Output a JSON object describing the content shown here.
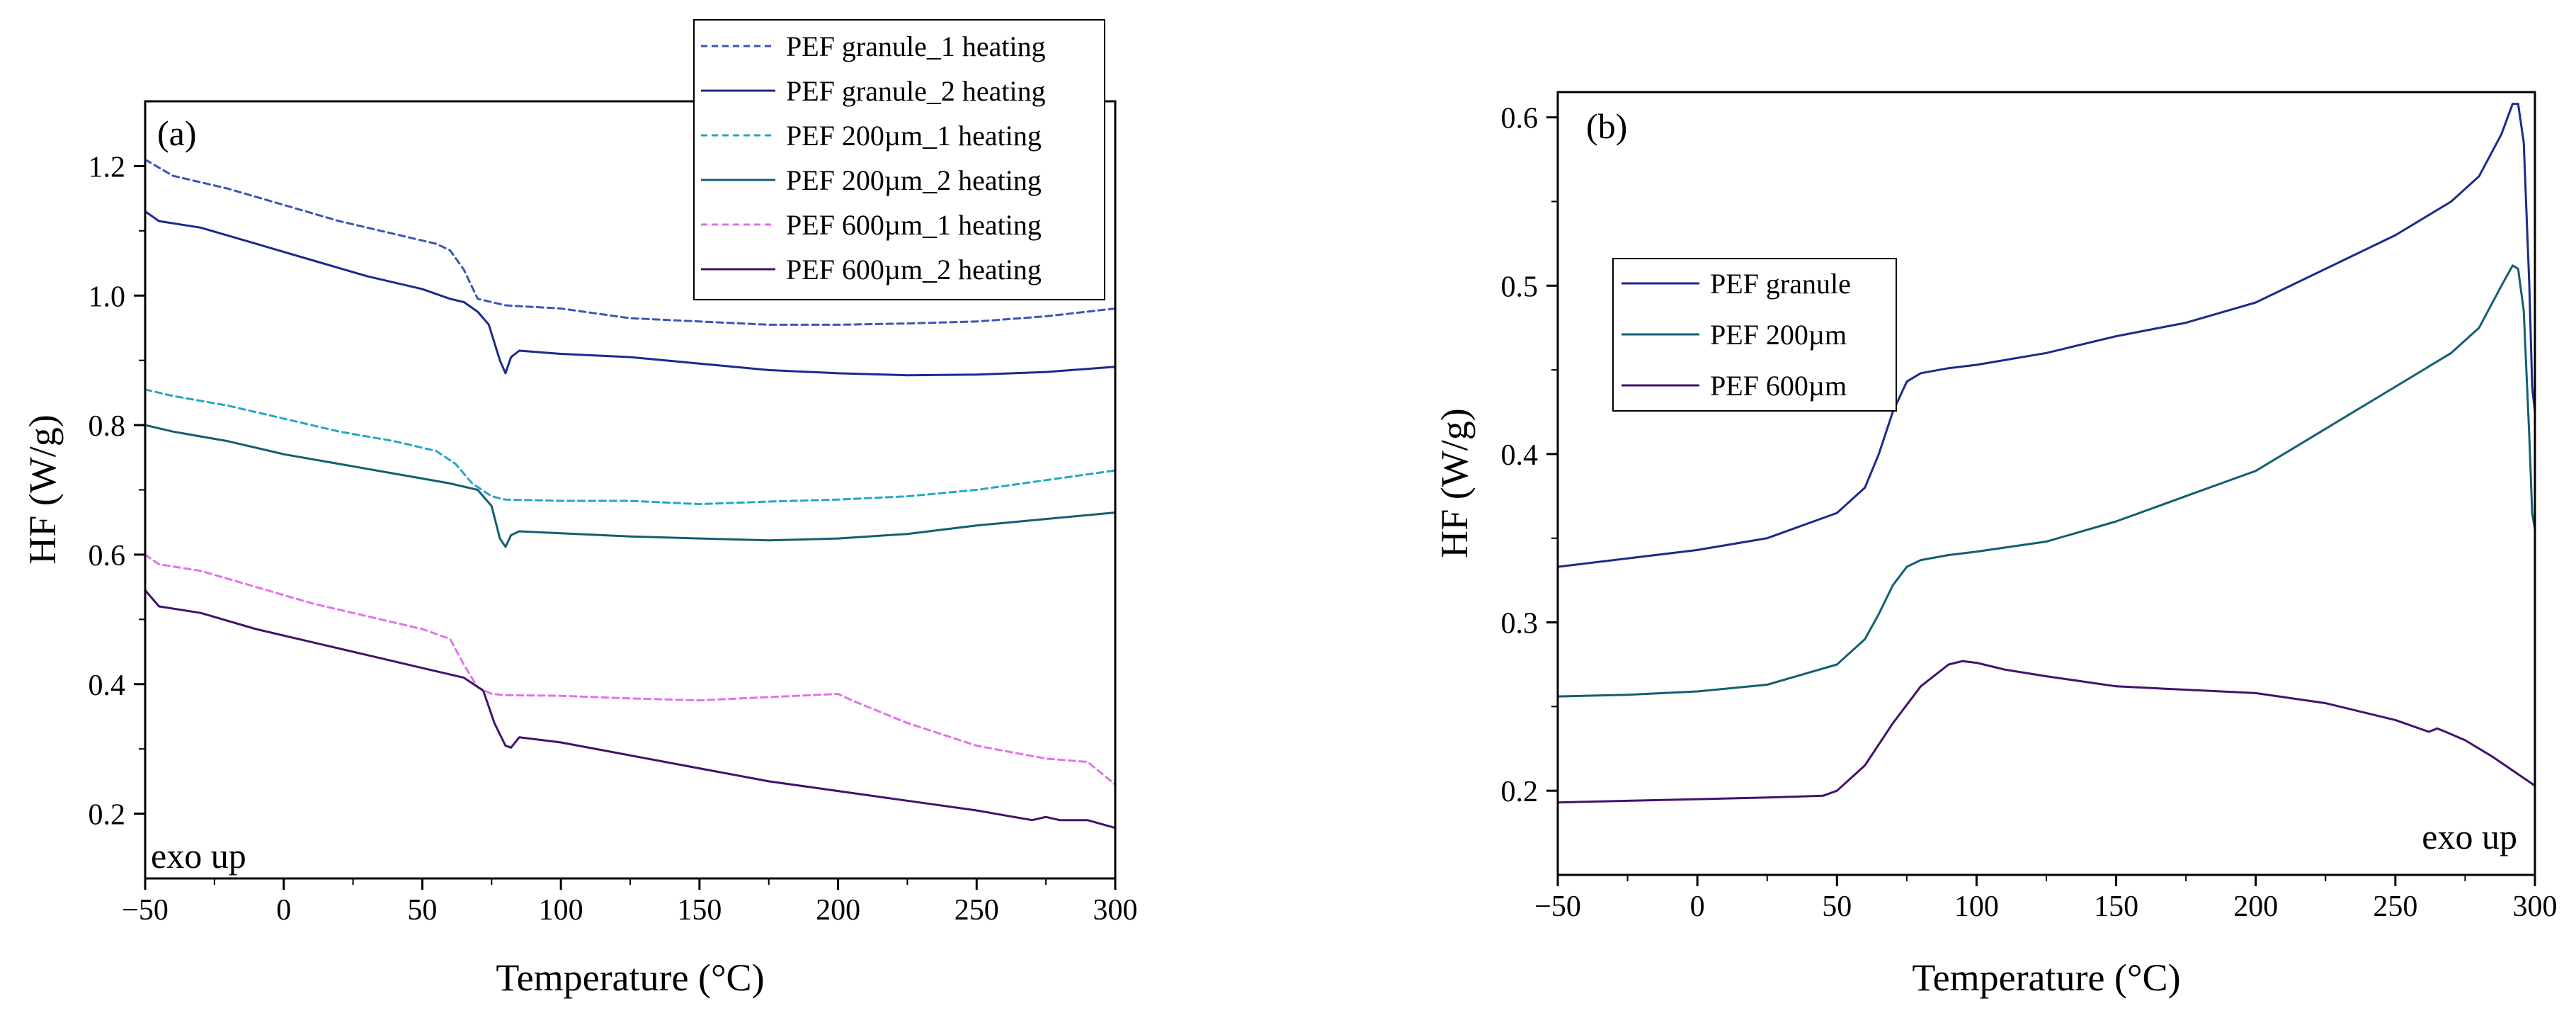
{
  "colors": {
    "granule_1": "#3a55b8",
    "granule_2": "#1c2a8c",
    "um200_1": "#27a6c5",
    "um200_2": "#135f72",
    "um600_1": "#e272ec",
    "um600_2": "#43126b",
    "axis": "#000000"
  },
  "chart_data": [
    {
      "type": "line",
      "panel": "(a)",
      "xlabel": "Temperature (°C)",
      "ylabel": "HF (W/g)",
      "xlim": [
        -50,
        300
      ],
      "ylim": [
        0.1,
        1.3
      ],
      "xticks": [
        "−50",
        "0",
        "50",
        "100",
        "150",
        "200",
        "250",
        "300"
      ],
      "xtick_values": [
        -50,
        0,
        50,
        100,
        150,
        200,
        250,
        300
      ],
      "yticks": [
        "0.2",
        "0.4",
        "0.6",
        "0.8",
        "1.0",
        "1.2"
      ],
      "ytick_values": [
        0.2,
        0.4,
        0.6,
        0.8,
        1.0,
        1.2
      ],
      "annotation": "exo up",
      "legend_position": "top-right",
      "series": [
        {
          "name": "PEF granule_1 heating",
          "color_key": "granule_1",
          "dash": true,
          "x": [
            -50,
            -40,
            -20,
            0,
            20,
            40,
            55,
            60,
            65,
            70,
            75,
            80,
            100,
            125,
            150,
            175,
            200,
            225,
            250,
            275,
            300
          ],
          "y": [
            1.21,
            1.185,
            1.165,
            1.14,
            1.115,
            1.095,
            1.08,
            1.07,
            1.04,
            0.995,
            0.99,
            0.985,
            0.98,
            0.965,
            0.96,
            0.955,
            0.955,
            0.957,
            0.96,
            0.968,
            0.98
          ]
        },
        {
          "name": "PEF granule_2 heating",
          "color_key": "granule_2",
          "dash": false,
          "x": [
            -50,
            -45,
            -30,
            -10,
            10,
            30,
            50,
            60,
            65,
            70,
            74,
            78,
            80,
            82,
            85,
            100,
            125,
            150,
            175,
            200,
            225,
            250,
            275,
            300
          ],
          "y": [
            1.13,
            1.115,
            1.105,
            1.08,
            1.055,
            1.03,
            1.01,
            0.995,
            0.99,
            0.975,
            0.955,
            0.9,
            0.88,
            0.905,
            0.915,
            0.91,
            0.905,
            0.895,
            0.885,
            0.88,
            0.877,
            0.878,
            0.882,
            0.89
          ]
        },
        {
          "name": "PEF 200µm_1 heating",
          "color_key": "um200_1",
          "dash": true,
          "x": [
            -50,
            -40,
            -20,
            0,
            20,
            40,
            55,
            62,
            68,
            75,
            80,
            100,
            125,
            150,
            175,
            200,
            225,
            250,
            275,
            300
          ],
          "y": [
            0.855,
            0.845,
            0.83,
            0.81,
            0.79,
            0.775,
            0.76,
            0.74,
            0.71,
            0.69,
            0.685,
            0.683,
            0.683,
            0.678,
            0.682,
            0.685,
            0.69,
            0.7,
            0.715,
            0.73
          ]
        },
        {
          "name": "PEF 200µm_2 heating",
          "color_key": "um200_2",
          "dash": false,
          "x": [
            -50,
            -40,
            -20,
            0,
            20,
            40,
            60,
            70,
            75,
            78,
            80,
            82,
            85,
            100,
            125,
            150,
            175,
            200,
            225,
            250,
            275,
            300
          ],
          "y": [
            0.8,
            0.79,
            0.775,
            0.755,
            0.74,
            0.725,
            0.71,
            0.7,
            0.675,
            0.625,
            0.612,
            0.63,
            0.636,
            0.633,
            0.628,
            0.625,
            0.622,
            0.625,
            0.632,
            0.645,
            0.655,
            0.665
          ]
        },
        {
          "name": "PEF 600µm_1 heating",
          "color_key": "um600_1",
          "dash": true,
          "x": [
            -50,
            -45,
            -30,
            -10,
            10,
            30,
            50,
            60,
            65,
            70,
            75,
            80,
            100,
            125,
            150,
            175,
            200,
            205,
            225,
            250,
            275,
            290,
            300
          ],
          "y": [
            0.6,
            0.585,
            0.575,
            0.55,
            0.525,
            0.505,
            0.485,
            0.47,
            0.43,
            0.395,
            0.385,
            0.383,
            0.382,
            0.378,
            0.375,
            0.38,
            0.385,
            0.375,
            0.34,
            0.305,
            0.285,
            0.28,
            0.245
          ]
        },
        {
          "name": "PEF 600µm_2 heating",
          "color_key": "um600_2",
          "dash": false,
          "x": [
            -50,
            -45,
            -30,
            -10,
            10,
            30,
            50,
            65,
            72,
            76,
            80,
            82,
            85,
            100,
            125,
            150,
            175,
            200,
            225,
            250,
            270,
            275,
            280,
            290,
            300
          ],
          "y": [
            0.545,
            0.52,
            0.51,
            0.485,
            0.465,
            0.445,
            0.425,
            0.41,
            0.39,
            0.34,
            0.305,
            0.302,
            0.318,
            0.31,
            0.29,
            0.27,
            0.25,
            0.235,
            0.22,
            0.205,
            0.19,
            0.195,
            0.19,
            0.19,
            0.178
          ]
        }
      ]
    },
    {
      "type": "line",
      "panel": "(b)",
      "xlabel": "Temperature (°C)",
      "ylabel": "HF (W/g)",
      "xlim": [
        -50,
        300
      ],
      "ylim": [
        0.15,
        0.615
      ],
      "xticks": [
        "−50",
        "0",
        "50",
        "100",
        "150",
        "200",
        "250",
        "300"
      ],
      "xtick_values": [
        -50,
        0,
        50,
        100,
        150,
        200,
        250,
        300
      ],
      "yticks": [
        "0.2",
        "0.3",
        "0.4",
        "0.5",
        "0.6"
      ],
      "ytick_values": [
        0.2,
        0.3,
        0.4,
        0.5,
        0.6
      ],
      "annotation": "exo up",
      "legend_position": "upper-left",
      "series": [
        {
          "name": "PEF granule",
          "color_key": "granule_2",
          "dash": false,
          "x": [
            -50,
            -25,
            0,
            25,
            50,
            60,
            65,
            70,
            75,
            80,
            90,
            100,
            125,
            150,
            175,
            200,
            225,
            250,
            270,
            280,
            288,
            292,
            294,
            296,
            298,
            299,
            300
          ],
          "y": [
            0.333,
            0.338,
            0.343,
            0.35,
            0.365,
            0.38,
            0.4,
            0.425,
            0.443,
            0.448,
            0.451,
            0.453,
            0.46,
            0.47,
            0.478,
            0.49,
            0.51,
            0.53,
            0.55,
            0.565,
            0.59,
            0.608,
            0.608,
            0.585,
            0.5,
            0.44,
            0.425
          ]
        },
        {
          "name": "PEF 200µm",
          "color_key": "um200_2",
          "dash": false,
          "x": [
            -50,
            -25,
            0,
            25,
            50,
            60,
            65,
            70,
            75,
            80,
            90,
            100,
            125,
            150,
            175,
            200,
            225,
            250,
            270,
            280,
            288,
            292,
            294,
            296,
            298,
            299,
            300
          ],
          "y": [
            0.256,
            0.257,
            0.259,
            0.263,
            0.275,
            0.29,
            0.305,
            0.322,
            0.333,
            0.337,
            0.34,
            0.342,
            0.348,
            0.36,
            0.375,
            0.39,
            0.415,
            0.44,
            0.46,
            0.475,
            0.5,
            0.512,
            0.51,
            0.485,
            0.41,
            0.365,
            0.355
          ]
        },
        {
          "name": "PEF 600µm",
          "color_key": "um600_2",
          "dash": false,
          "x": [
            -50,
            -25,
            0,
            25,
            45,
            50,
            60,
            70,
            80,
            90,
            95,
            100,
            110,
            125,
            150,
            175,
            200,
            225,
            250,
            262,
            265,
            268,
            275,
            285,
            300
          ],
          "y": [
            0.193,
            0.194,
            0.195,
            0.196,
            0.197,
            0.2,
            0.215,
            0.24,
            0.262,
            0.275,
            0.277,
            0.276,
            0.272,
            0.268,
            0.262,
            0.26,
            0.258,
            0.252,
            0.242,
            0.235,
            0.237,
            0.235,
            0.23,
            0.22,
            0.203
          ]
        }
      ]
    }
  ]
}
